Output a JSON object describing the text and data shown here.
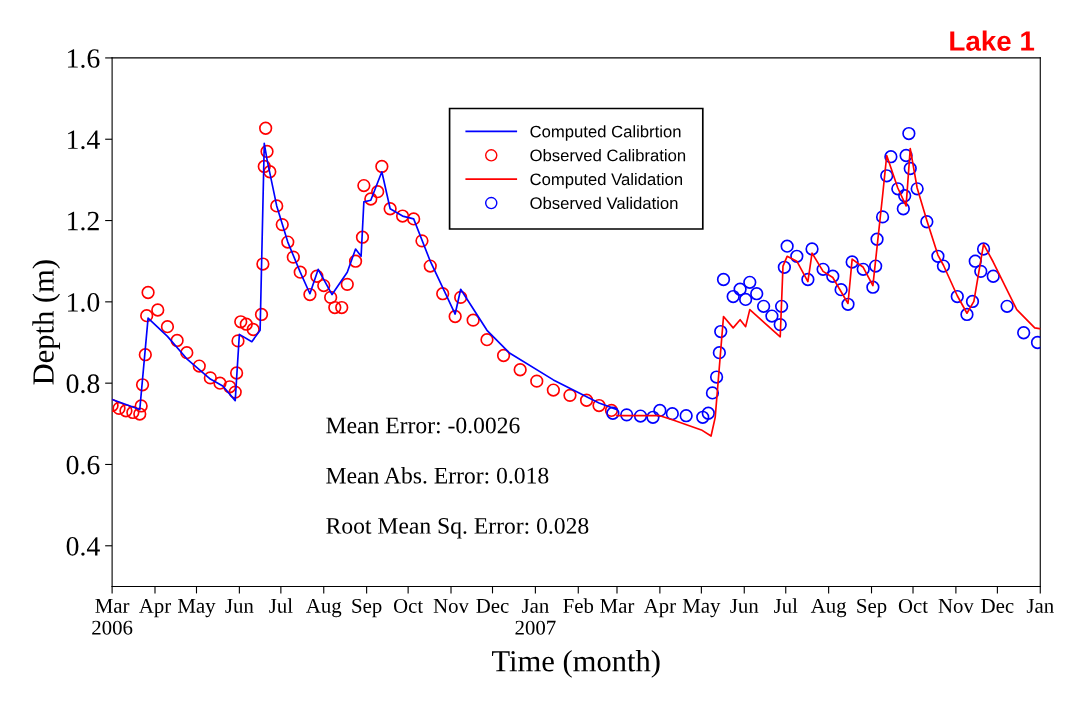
{
  "chart_data": {
    "type": "line",
    "title": "Lake 1",
    "xlabel": "Time (month)",
    "ylabel": "Depth (m)",
    "xlim": [
      "2006-03-01",
      "2008-01-01"
    ],
    "xticks": [
      {
        "value": "2006-03-01",
        "label": "Mar\n2006"
      },
      {
        "value": "2006-04-01",
        "label": "Apr"
      },
      {
        "value": "2006-05-01",
        "label": "May"
      },
      {
        "value": "2006-06-01",
        "label": "Jun"
      },
      {
        "value": "2006-07-01",
        "label": "Jul"
      },
      {
        "value": "2006-08-01",
        "label": "Aug"
      },
      {
        "value": "2006-09-01",
        "label": "Sep"
      },
      {
        "value": "2006-10-01",
        "label": "Oct"
      },
      {
        "value": "2006-11-01",
        "label": "Nov"
      },
      {
        "value": "2006-12-01",
        "label": "Dec"
      },
      {
        "value": "2007-01-01",
        "label": "Jan\n2007"
      },
      {
        "value": "2007-02-01",
        "label": "Feb"
      },
      {
        "value": "2007-03-01",
        "label": "Mar"
      },
      {
        "value": "2007-04-01",
        "label": "Apr"
      },
      {
        "value": "2007-05-01",
        "label": "May"
      },
      {
        "value": "2007-06-01",
        "label": "Jun"
      },
      {
        "value": "2007-07-01",
        "label": "Jul"
      },
      {
        "value": "2007-08-01",
        "label": "Aug"
      },
      {
        "value": "2007-09-01",
        "label": "Sep"
      },
      {
        "value": "2007-10-01",
        "label": "Oct"
      },
      {
        "value": "2007-11-01",
        "label": "Nov"
      },
      {
        "value": "2007-12-01",
        "label": "Dec"
      },
      {
        "value": "2008-01-01",
        "label": "Jan"
      }
    ],
    "ylim": [
      0.3,
      1.6
    ],
    "yticks": [
      0.4,
      0.6,
      0.8,
      {
        "value": 1,
        "label": "1.0"
      },
      1.2,
      1.4,
      1.6
    ],
    "grid": false,
    "legend": "top",
    "line_style": "solid",
    "annotations": [
      "Mean Error: -0.0026",
      "Mean Abs. Error: 0.018",
      "Root Mean Sq. Error: 0.028"
    ],
    "series": [
      {
        "name": "Computed Calibrtion",
        "marker": "none",
        "color": "#0000ff",
        "x": [
          "2006-03-01",
          "2006-03-21",
          "2006-03-27",
          "2006-04-10",
          "2006-04-24",
          "2006-05-11",
          "2006-05-20",
          "2006-05-29",
          "2006-06-01",
          "2006-06-10",
          "2006-06-16",
          "2006-06-19",
          "2006-06-21",
          "2006-06-28",
          "2006-07-06",
          "2006-07-15",
          "2006-07-22",
          "2006-07-28",
          "2006-08-07",
          "2006-08-18",
          "2006-08-24",
          "2006-08-28",
          "2006-08-30",
          "2006-09-04",
          "2006-09-12",
          "2006-09-18",
          "2006-09-27",
          "2006-10-05",
          "2006-10-17",
          "2006-11-04",
          "2006-11-08",
          "2006-11-27",
          "2006-12-13",
          "2007-01-14",
          "2007-02-16",
          "2007-03-01"
        ],
        "values": [
          0.76,
          0.735,
          0.96,
          0.915,
          0.86,
          0.81,
          0.793,
          0.757,
          0.92,
          0.902,
          0.93,
          1.39,
          1.35,
          1.236,
          1.147,
          1.073,
          1.02,
          1.08,
          1.018,
          1.073,
          1.13,
          1.112,
          1.246,
          1.25,
          1.32,
          1.229,
          1.211,
          1.204,
          1.1,
          0.97,
          1.031,
          0.93,
          0.875,
          0.808,
          0.751,
          0.735
        ]
      },
      {
        "name": "Observed Calibration",
        "type": "scatter",
        "marker": "circle",
        "color": "#ff0000",
        "x": [
          "2006-03-01",
          "2006-03-06",
          "2006-03-11",
          "2006-03-16",
          "2006-03-21",
          "2006-03-22",
          "2006-03-23",
          "2006-03-25",
          "2006-03-26",
          "2006-03-27",
          "2006-04-03",
          "2006-04-10",
          "2006-04-17",
          "2006-04-24",
          "2006-05-03",
          "2006-05-11",
          "2006-05-18",
          "2006-05-25",
          "2006-05-29",
          "2006-05-30",
          "2006-05-31",
          "2006-06-02",
          "2006-06-06",
          "2006-06-11",
          "2006-06-17",
          "2006-06-18",
          "2006-06-19",
          "2006-06-20",
          "2006-06-21",
          "2006-06-23",
          "2006-06-28",
          "2006-07-02",
          "2006-07-06",
          "2006-07-10",
          "2006-07-15",
          "2006-07-22",
          "2006-07-27",
          "2006-08-01",
          "2006-08-06",
          "2006-08-09",
          "2006-08-14",
          "2006-08-18",
          "2006-08-24",
          "2006-08-29",
          "2006-08-30",
          "2006-09-04",
          "2006-09-09",
          "2006-09-12",
          "2006-09-18",
          "2006-09-27",
          "2006-10-05",
          "2006-10-11",
          "2006-10-17",
          "2006-10-26",
          "2006-11-04",
          "2006-11-08",
          "2006-11-17",
          "2006-11-27",
          "2006-12-09",
          "2006-12-21",
          "2007-01-02",
          "2007-01-14",
          "2007-01-26",
          "2007-02-07",
          "2007-02-16",
          "2007-02-25"
        ],
        "values": [
          0.745,
          0.738,
          0.732,
          0.728,
          0.724,
          0.744,
          0.796,
          0.87,
          0.966,
          1.023,
          0.98,
          0.939,
          0.905,
          0.875,
          0.842,
          0.813,
          0.8,
          0.791,
          0.778,
          0.825,
          0.904,
          0.951,
          0.945,
          0.932,
          0.969,
          1.093,
          1.333,
          1.427,
          1.37,
          1.32,
          1.236,
          1.19,
          1.147,
          1.11,
          1.073,
          1.018,
          1.063,
          1.04,
          1.011,
          0.986,
          0.986,
          1.043,
          1.1,
          1.159,
          1.286,
          1.253,
          1.271,
          1.333,
          1.229,
          1.211,
          1.204,
          1.15,
          1.088,
          1.02,
          0.964,
          1.011,
          0.955,
          0.907,
          0.868,
          0.833,
          0.805,
          0.783,
          0.77,
          0.758,
          0.745,
          0.733
        ]
      },
      {
        "name": "Computed Validation",
        "marker": "none",
        "color": "#ff0000",
        "x": [
          "2007-03-01",
          "2007-04-01",
          "2007-04-10",
          "2007-05-01",
          "2007-05-08",
          "2007-05-11",
          "2007-05-17",
          "2007-05-24",
          "2007-05-29",
          "2007-06-02",
          "2007-06-05",
          "2007-06-27",
          "2007-06-29",
          "2007-07-02",
          "2007-07-09",
          "2007-07-17",
          "2007-07-20",
          "2007-07-28",
          "2007-08-04",
          "2007-08-15",
          "2007-08-18",
          "2007-08-26",
          "2007-09-02",
          "2007-09-09",
          "2007-09-12",
          "2007-09-20",
          "2007-09-26",
          "2007-09-29",
          "2007-10-04",
          "2007-10-11",
          "2007-10-19",
          "2007-10-23",
          "2007-11-02",
          "2007-11-09",
          "2007-11-14",
          "2007-11-21",
          "2007-11-28",
          "2007-12-15",
          "2007-12-28",
          "2008-01-01"
        ],
        "values": [
          0.72,
          0.72,
          0.71,
          0.685,
          0.67,
          0.716,
          0.964,
          0.936,
          0.956,
          0.939,
          0.981,
          0.914,
          1.088,
          1.112,
          1.1,
          1.05,
          1.12,
          1.075,
          1.06,
          0.996,
          1.105,
          1.085,
          1.04,
          1.261,
          1.36,
          1.28,
          1.236,
          1.377,
          1.28,
          1.2,
          1.115,
          1.09,
          1.015,
          0.972,
          1.001,
          1.142,
          1.098,
          0.981,
          0.936,
          0.934
        ]
      },
      {
        "name": "Observed Validation",
        "type": "scatter",
        "marker": "circle",
        "color": "#0000ff",
        "x": [
          "2007-02-26",
          "2007-03-08",
          "2007-03-18",
          "2007-03-27",
          "2007-04-01",
          "2007-04-10",
          "2007-04-20",
          "2007-05-02",
          "2007-05-06",
          "2007-05-09",
          "2007-05-12",
          "2007-05-14",
          "2007-05-15",
          "2007-05-17",
          "2007-05-24",
          "2007-05-29",
          "2007-06-02",
          "2007-06-05",
          "2007-06-10",
          "2007-06-15",
          "2007-06-21",
          "2007-06-27",
          "2007-06-28",
          "2007-06-30",
          "2007-07-02",
          "2007-07-09",
          "2007-07-17",
          "2007-07-20",
          "2007-07-28",
          "2007-08-04",
          "2007-08-10",
          "2007-08-15",
          "2007-08-18",
          "2007-08-26",
          "2007-09-02",
          "2007-09-04",
          "2007-09-05",
          "2007-09-09",
          "2007-09-12",
          "2007-09-15",
          "2007-09-20",
          "2007-09-24",
          "2007-09-25",
          "2007-09-26",
          "2007-09-28",
          "2007-09-29",
          "2007-10-04",
          "2007-10-11",
          "2007-10-19",
          "2007-10-23",
          "2007-11-02",
          "2007-11-09",
          "2007-11-13",
          "2007-11-15",
          "2007-11-19",
          "2007-11-21",
          "2007-11-28",
          "2007-12-08",
          "2007-12-20",
          "2007-12-30"
        ],
        "values": [
          0.726,
          0.722,
          0.719,
          0.716,
          0.733,
          0.725,
          0.72,
          0.716,
          0.726,
          0.776,
          0.815,
          0.875,
          0.927,
          1.055,
          1.013,
          1.031,
          1.006,
          1.048,
          1.02,
          0.989,
          0.965,
          0.944,
          0.989,
          1.085,
          1.137,
          1.112,
          1.055,
          1.13,
          1.08,
          1.063,
          1.03,
          0.994,
          1.098,
          1.08,
          1.036,
          1.088,
          1.154,
          1.209,
          1.31,
          1.357,
          1.278,
          1.229,
          1.261,
          1.36,
          1.414,
          1.328,
          1.278,
          1.197,
          1.112,
          1.088,
          1.013,
          0.969,
          1.001,
          1.1,
          1.075,
          1.13,
          1.063,
          0.989,
          0.924,
          0.9
        ]
      }
    ]
  }
}
